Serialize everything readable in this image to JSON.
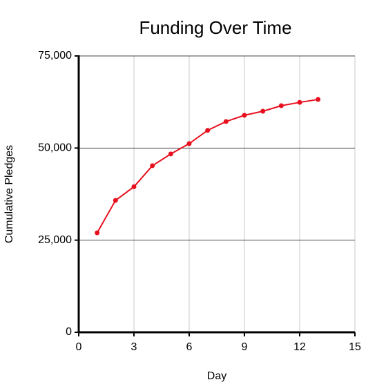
{
  "chart_data": {
    "type": "line",
    "title": "Funding Over Time",
    "x_label": "Day",
    "y_label": "Cumulative Pledges",
    "x": [
      1,
      2,
      3,
      4,
      5,
      6,
      7,
      8,
      9,
      10,
      11,
      12,
      13
    ],
    "series": [
      {
        "name": "Cumulative Pledges",
        "color": "#e8101e",
        "values": [
          27000,
          35800,
          39500,
          45200,
          48400,
          51200,
          54800,
          57200,
          58900,
          60000,
          61500,
          62400,
          63200
        ]
      }
    ],
    "xlim": [
      0,
      15
    ],
    "xticks": [
      0,
      3,
      6,
      9,
      12,
      15
    ],
    "ylim": [
      0,
      75000
    ],
    "yticks": [
      0,
      {
        "value": 25000,
        "label": "25,000"
      },
      {
        "value": 50000,
        "label": "50,000"
      },
      {
        "value": 75000,
        "label": "75,000"
      }
    ],
    "grid": true
  }
}
